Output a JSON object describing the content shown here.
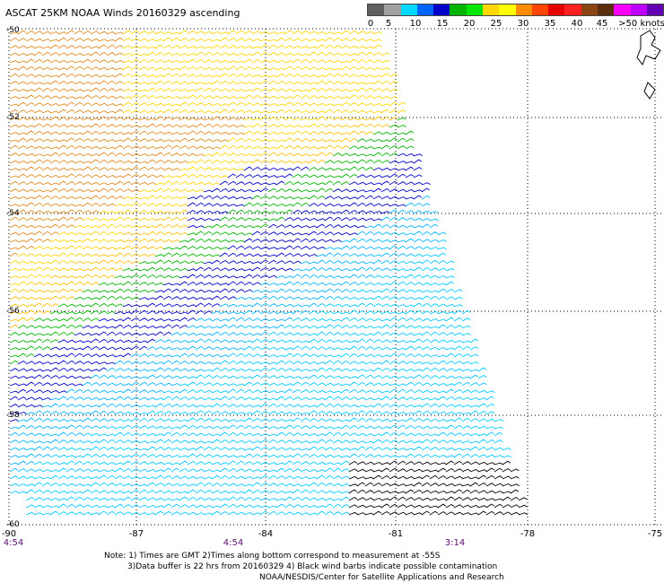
{
  "title": "ASCAT 25KM NOAA Winds 20160329 ascending",
  "legend": {
    "colors": [
      "#606060",
      "#a0a0a0",
      "#00d8ff",
      "#0064ff",
      "#0000c8",
      "#00b400",
      "#00e600",
      "#ffd700",
      "#ffff00",
      "#ff8c00",
      "#ff4500",
      "#e60000",
      "#ff2020",
      "#8b4513",
      "#5a2d0c",
      "#ff00ff",
      "#c000ff",
      "#6400b4"
    ],
    "labels": [
      "0",
      "5",
      "10",
      "15",
      "20",
      "25",
      "30",
      "35",
      "40",
      "45",
      ">50 knots"
    ]
  },
  "axes": {
    "lat_labels": [
      "-50",
      "-52",
      "-54",
      "-56",
      "-58",
      "-60"
    ],
    "lon_labels": [
      "-90",
      "-87",
      "-84",
      "-81",
      "-78",
      "-75"
    ],
    "times": [
      "4:54",
      "4:54",
      "3:14"
    ]
  },
  "notes": [
    "Note: 1) Times are GMT 2)Times along bottom correspond to measurement at -55S",
    "3)Data buffer is 22 hrs from 20160329 4) Black wind barbs indicate possible contamination",
    "NOAA/NESDIS/Center for Satellite Applications and Research"
  ]
}
